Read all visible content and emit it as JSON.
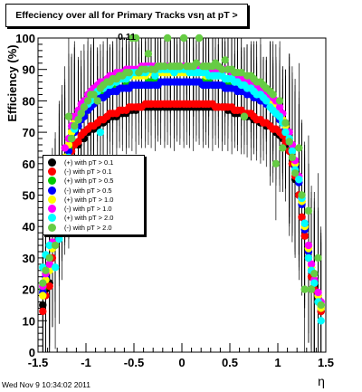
{
  "chart_data": {
    "type": "scatter",
    "title": "Effeciency over all for Primary Tracks vsη at pT > 0.11",
    "ylabel": "Efficiency (%)",
    "xlabel": "η",
    "xlim": [
      -1.5,
      1.5
    ],
    "ylim": [
      0,
      100
    ],
    "x_ticks": [
      "-1.5",
      "-1",
      "-0.5",
      "0",
      "0.5",
      "1",
      "1.5"
    ],
    "y_ticks": [
      "0",
      "10",
      "20",
      "30",
      "40",
      "50",
      "60",
      "70",
      "80",
      "90",
      "100"
    ],
    "grid": false,
    "legend_position": "left-middle",
    "x": [
      -1.45,
      -1.42,
      -1.38,
      -1.35,
      -1.32,
      -1.28,
      -1.25,
      -1.22,
      -1.18,
      -1.15,
      -1.12,
      -1.08,
      -1.05,
      -1.02,
      -0.98,
      -0.95,
      -0.92,
      -0.88,
      -0.85,
      -0.82,
      -0.78,
      -0.75,
      -0.72,
      -0.68,
      -0.65,
      -0.62,
      -0.58,
      -0.55,
      -0.52,
      -0.48,
      -0.45,
      -0.42,
      -0.38,
      -0.35,
      -0.32,
      -0.28,
      -0.25,
      -0.22,
      -0.18,
      -0.15,
      -0.12,
      -0.08,
      -0.05,
      -0.02,
      0.02,
      0.05,
      0.08,
      0.12,
      0.15,
      0.18,
      0.22,
      0.25,
      0.28,
      0.32,
      0.35,
      0.38,
      0.42,
      0.45,
      0.48,
      0.52,
      0.55,
      0.58,
      0.62,
      0.65,
      0.68,
      0.72,
      0.75,
      0.78,
      0.82,
      0.85,
      0.88,
      0.92,
      0.95,
      0.98,
      1.02,
      1.05,
      1.08,
      1.12,
      1.15,
      1.18,
      1.22,
      1.25,
      1.28,
      1.32,
      1.35,
      1.38,
      1.42,
      1.45
    ],
    "series": [
      {
        "name": "(+) with pT > 0.1",
        "color": "#000000",
        "values": [
          15,
          20,
          22,
          33,
          42,
          50,
          55,
          58,
          60,
          65,
          66,
          66,
          68,
          68,
          70,
          71,
          71,
          72,
          73,
          73,
          74,
          75,
          75,
          75,
          76,
          76,
          76,
          77,
          77,
          77,
          78,
          78,
          78,
          78,
          78,
          78,
          78,
          78,
          78,
          78,
          78,
          78,
          78,
          78,
          78,
          78,
          78,
          78,
          78,
          78,
          78,
          78,
          78,
          78,
          78,
          78,
          78,
          78,
          77,
          77,
          76,
          76,
          76,
          75,
          75,
          75,
          74,
          74,
          73,
          73,
          72,
          72,
          71,
          70,
          69,
          68,
          66,
          64,
          60,
          55,
          50,
          43,
          37,
          30,
          24,
          21,
          17,
          13
        ]
      },
      {
        "name": "(-) with pT > 0.1",
        "color": "#ff0000",
        "values": [
          13,
          18,
          21,
          30,
          40,
          48,
          54,
          57,
          60,
          64,
          66,
          67,
          69,
          70,
          71,
          72,
          72,
          73,
          74,
          74,
          75,
          76,
          76,
          76,
          77,
          77,
          77,
          78,
          78,
          78,
          78,
          78,
          79,
          79,
          79,
          79,
          79,
          79,
          79,
          79,
          79,
          79,
          79,
          79,
          79,
          79,
          79,
          79,
          79,
          79,
          79,
          79,
          79,
          79,
          78,
          78,
          78,
          78,
          78,
          78,
          77,
          77,
          77,
          76,
          76,
          76,
          75,
          74,
          74,
          73,
          73,
          72,
          71,
          71,
          70,
          69,
          67,
          64,
          60,
          56,
          50,
          43,
          37,
          30,
          24,
          20,
          16,
          13
        ]
      },
      {
        "name": "(+) with pT > 0.5",
        "color": "#00cc00",
        "values": [
          20,
          25,
          28,
          35,
          44,
          53,
          58,
          62,
          65,
          69,
          71,
          72,
          75,
          76,
          78,
          79,
          80,
          81,
          82,
          82,
          82,
          83,
          83,
          84,
          84,
          84,
          85,
          85,
          85,
          85,
          85,
          85,
          85,
          86,
          86,
          86,
          86,
          86,
          86,
          86,
          86,
          86,
          86,
          86,
          86,
          86,
          86,
          86,
          86,
          86,
          86,
          86,
          86,
          85,
          85,
          85,
          85,
          85,
          85,
          84,
          84,
          84,
          83,
          83,
          83,
          82,
          82,
          81,
          81,
          80,
          80,
          79,
          78,
          77,
          75,
          74,
          72,
          68,
          65,
          60,
          55,
          48,
          40,
          33,
          27,
          23,
          18,
          15
        ]
      },
      {
        "name": "(-) with pT > 0.5",
        "color": "#0000ff",
        "values": [
          19,
          24,
          27,
          34,
          43,
          52,
          57,
          61,
          64,
          68,
          70,
          72,
          74,
          75,
          77,
          78,
          79,
          80,
          81,
          81,
          82,
          83,
          83,
          83,
          84,
          84,
          84,
          84,
          85,
          85,
          85,
          85,
          85,
          85,
          85,
          85,
          85,
          86,
          86,
          86,
          86,
          86,
          86,
          86,
          86,
          86,
          86,
          86,
          86,
          86,
          85,
          85,
          85,
          85,
          85,
          85,
          85,
          84,
          84,
          84,
          84,
          83,
          83,
          83,
          82,
          82,
          81,
          81,
          80,
          80,
          79,
          78,
          77,
          76,
          74,
          73,
          71,
          67,
          64,
          59,
          54,
          47,
          39,
          32,
          26,
          22,
          18,
          14
        ]
      },
      {
        "name": "(+) with pT > 1.0",
        "color": "#ffff00",
        "values": [
          18,
          23,
          26,
          33,
          42,
          52,
          58,
          62,
          66,
          70,
          73,
          75,
          77,
          78,
          80,
          81,
          82,
          83,
          84,
          84,
          85,
          86,
          86,
          86,
          87,
          87,
          87,
          88,
          88,
          88,
          88,
          88,
          88,
          89,
          89,
          89,
          89,
          89,
          89,
          89,
          89,
          89,
          89,
          89,
          89,
          89,
          89,
          89,
          89,
          89,
          89,
          88,
          88,
          88,
          88,
          88,
          88,
          87,
          87,
          87,
          86,
          86,
          86,
          85,
          85,
          84,
          84,
          83,
          82,
          82,
          81,
          80,
          79,
          78,
          76,
          74,
          72,
          68,
          64,
          60,
          55,
          48,
          40,
          33,
          27,
          22,
          18,
          14
        ]
      },
      {
        "name": "(-) with pT > 1.0",
        "color": "#ff00ff",
        "values": [
          21,
          25,
          28,
          35,
          45,
          55,
          60,
          65,
          68,
          72,
          75,
          77,
          79,
          80,
          82,
          83,
          84,
          85,
          86,
          86,
          87,
          88,
          88,
          89,
          89,
          89,
          90,
          90,
          90,
          90,
          90,
          91,
          91,
          91,
          91,
          91,
          91,
          91,
          91,
          91,
          91,
          91,
          91,
          91,
          91,
          91,
          91,
          91,
          91,
          91,
          91,
          91,
          91,
          90,
          90,
          90,
          90,
          90,
          90,
          89,
          89,
          88,
          88,
          87,
          87,
          86,
          86,
          85,
          84,
          84,
          83,
          82,
          81,
          80,
          78,
          76,
          73,
          70,
          66,
          61,
          56,
          49,
          41,
          34,
          28,
          23,
          19,
          16
        ]
      },
      {
        "name": "(+) with pT > 2.0",
        "color": "#00ffff",
        "values": [
          27,
          31,
          34,
          40,
          27,
          36,
          45,
          58,
          62,
          68,
          71,
          74,
          76,
          78,
          79,
          80,
          82,
          83,
          70,
          84,
          85,
          85,
          86,
          86,
          87,
          87,
          87,
          88,
          89,
          89,
          89,
          89,
          89,
          90,
          90,
          88,
          90,
          90,
          90,
          90,
          90,
          89,
          90,
          90,
          90,
          90,
          89,
          89,
          89,
          89,
          89,
          89,
          88,
          88,
          88,
          88,
          88,
          87,
          87,
          87,
          86,
          86,
          85,
          85,
          84,
          84,
          83,
          82,
          82,
          81,
          80,
          78,
          77,
          76,
          75,
          73,
          70,
          68,
          64,
          58,
          55,
          49,
          41,
          30,
          26,
          22,
          16,
          10
        ]
      },
      {
        "name": "(-) with pT > 2.0",
        "color": "#66cc44",
        "values": [
          22,
          26,
          30,
          38,
          34,
          45,
          55,
          60,
          75,
          68,
          72,
          74,
          76,
          78,
          80,
          82,
          82,
          80,
          84,
          85,
          86,
          86,
          87,
          87,
          88,
          88,
          89,
          89,
          100,
          100,
          89,
          90,
          90,
          95,
          90,
          90,
          91,
          91,
          91,
          100,
          91,
          91,
          91,
          91,
          100,
          91,
          91,
          91,
          92,
          100,
          91,
          91,
          91,
          91,
          92,
          91,
          90,
          93,
          90,
          90,
          89,
          89,
          89,
          75,
          88,
          88,
          87,
          86,
          86,
          85,
          84,
          83,
          82,
          60,
          80,
          65,
          73,
          67,
          62,
          57,
          65,
          50,
          20,
          45,
          20,
          25,
          30,
          15
        ]
      }
    ]
  },
  "footer": "Wed Nov  9 10:34:02 2011"
}
